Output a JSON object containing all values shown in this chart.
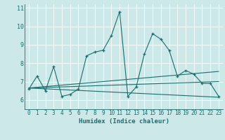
{
  "xlabel": "Humidex (Indice chaleur)",
  "xlim": [
    -0.5,
    23.5
  ],
  "ylim": [
    5.5,
    11.2
  ],
  "yticks": [
    6,
    7,
    8,
    9,
    10,
    11
  ],
  "xticks": [
    0,
    1,
    2,
    3,
    4,
    5,
    6,
    7,
    8,
    9,
    10,
    11,
    12,
    13,
    14,
    15,
    16,
    17,
    18,
    19,
    20,
    21,
    22,
    23
  ],
  "bg_color": "#cce8e8",
  "line_color": "#1a6e6e",
  "grid_color": "#ffffff",
  "series_main": {
    "x": [
      0,
      1,
      2,
      3,
      4,
      5,
      6,
      7,
      8,
      9,
      10,
      11,
      12,
      13,
      14,
      15,
      16,
      17,
      18,
      19,
      20,
      21,
      22,
      23
    ],
    "y": [
      6.6,
      7.3,
      6.5,
      7.8,
      6.2,
      6.3,
      6.6,
      8.4,
      8.6,
      8.7,
      9.5,
      10.8,
      6.2,
      6.7,
      8.5,
      9.6,
      9.3,
      8.7,
      7.3,
      7.6,
      7.4,
      6.9,
      6.9,
      6.2
    ]
  },
  "trend_lines": [
    {
      "x": [
        0,
        23
      ],
      "y": [
        6.65,
        7.55
      ]
    },
    {
      "x": [
        0,
        23
      ],
      "y": [
        6.65,
        6.15
      ]
    },
    {
      "x": [
        0,
        23
      ],
      "y": [
        6.65,
        7.0
      ]
    }
  ],
  "tick_fontsize": 5.5,
  "xlabel_fontsize": 6.5
}
